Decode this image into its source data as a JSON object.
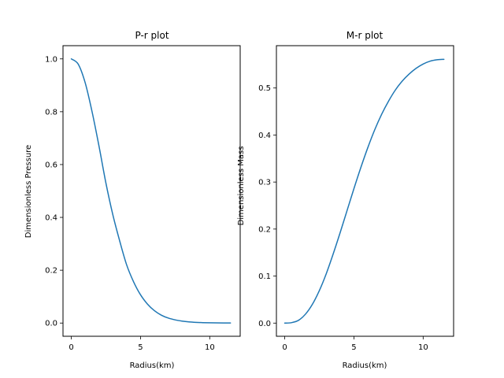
{
  "chart_data": [
    {
      "type": "line",
      "title": "P-r plot",
      "xlabel": "Radius(km)",
      "ylabel": "Dimensionless Pressure",
      "xlim": [
        -0.6,
        12.2
      ],
      "ylim": [
        -0.05,
        1.05
      ],
      "xticks": [
        0,
        5,
        10
      ],
      "yticks": [
        0.0,
        0.2,
        0.4,
        0.6,
        0.8,
        1.0
      ],
      "ytick_labels": [
        "0.0",
        "0.2",
        "0.4",
        "0.6",
        "0.8",
        "1.0"
      ],
      "grid": false,
      "color": "#1f77b4",
      "series": [
        {
          "x": [
            0,
            0.5,
            1.0,
            1.5,
            2.0,
            2.5,
            3.0,
            3.5,
            4.0,
            4.5,
            5.0,
            5.5,
            6.0,
            6.5,
            7.0,
            7.5,
            8.0,
            8.5,
            9.0,
            9.5,
            10.0,
            10.5,
            11.0,
            11.5
          ],
          "y": [
            1.0,
            0.98,
            0.91,
            0.8,
            0.67,
            0.53,
            0.41,
            0.31,
            0.22,
            0.156,
            0.107,
            0.072,
            0.047,
            0.03,
            0.019,
            0.012,
            0.0075,
            0.0045,
            0.0027,
            0.0016,
            0.0009,
            0.0005,
            0.0003,
            0.0002
          ]
        }
      ]
    },
    {
      "type": "line",
      "title": "M-r plot",
      "xlabel": "Radius(km)",
      "ylabel": "Dimensionless Mass",
      "xlim": [
        -0.6,
        12.2
      ],
      "ylim": [
        -0.028,
        0.59
      ],
      "xticks": [
        0,
        5,
        10
      ],
      "yticks": [
        0.0,
        0.1,
        0.2,
        0.3,
        0.4,
        0.5
      ],
      "ytick_labels": [
        "0.0",
        "0.1",
        "0.2",
        "0.3",
        "0.4",
        "0.5"
      ],
      "grid": false,
      "color": "#1f77b4",
      "series": [
        {
          "x": [
            0,
            0.5,
            1.0,
            1.5,
            2.0,
            2.5,
            3.0,
            3.5,
            4.0,
            4.5,
            5.0,
            5.5,
            6.0,
            6.5,
            7.0,
            7.5,
            8.0,
            8.5,
            9.0,
            9.5,
            10.0,
            10.5,
            11.0,
            11.5
          ],
          "y": [
            0.0,
            0.001,
            0.006,
            0.019,
            0.04,
            0.069,
            0.105,
            0.147,
            0.192,
            0.239,
            0.286,
            0.331,
            0.373,
            0.411,
            0.444,
            0.472,
            0.496,
            0.515,
            0.53,
            0.542,
            0.551,
            0.557,
            0.56,
            0.561
          ]
        }
      ]
    }
  ]
}
